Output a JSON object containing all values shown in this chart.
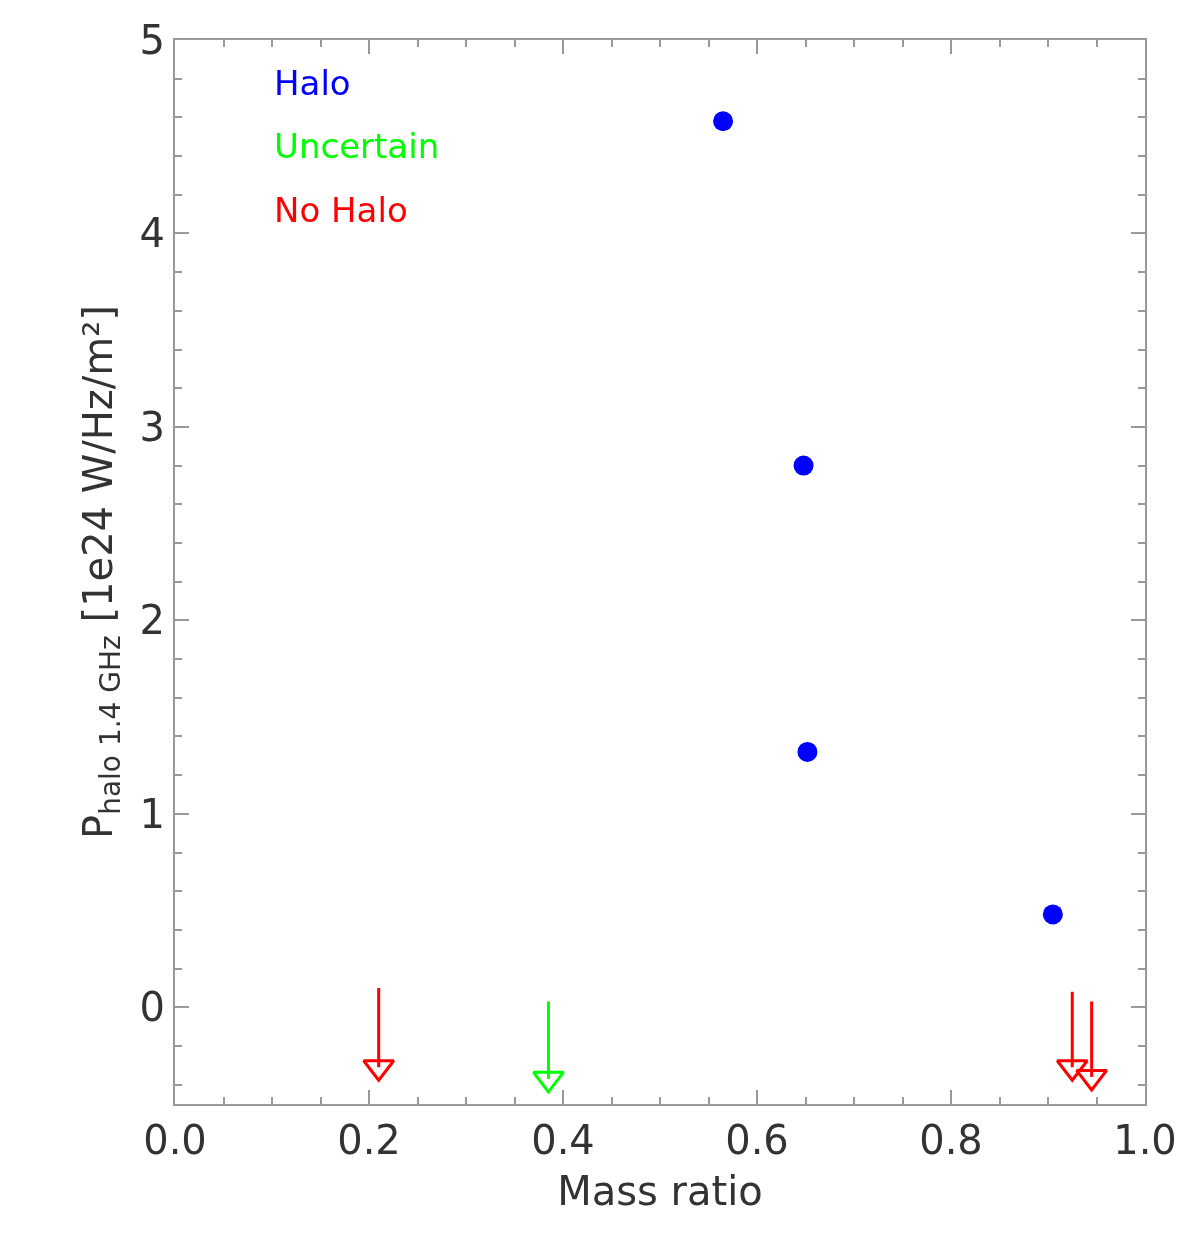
{
  "chart_data": {
    "type": "scatter",
    "xlabel": "Mass ratio",
    "ylabel": "P$_{halo 1.4 GHz}$ [1e24 W/Hz/m²]",
    "xlim": [
      0,
      1
    ],
    "xticks": [
      {
        "value": 0,
        "label": "0.0"
      },
      0.2,
      0.4,
      0.6,
      0.8,
      {
        "value": 1,
        "label": "1.0"
      }
    ],
    "ylim": [
      -0.5,
      5
    ],
    "yticks": [
      0,
      1,
      2,
      3,
      4,
      5
    ],
    "legend": false,
    "marker": "circle",
    "series": [
      {
        "name": "Halo",
        "color": "#0000ff",
        "x": [
          0.565,
          0.648,
          0.652,
          0.905
        ],
        "values": [
          4.58,
          2.8,
          1.32,
          0.48
        ]
      },
      {
        "name": "Uncertain",
        "color": "#00ff00",
        "marker": "triangle",
        "x": [
          0.385
        ],
        "values": [
          -0.37
        ],
        "errors": [
          [
            -0.37,
            0.03
          ]
        ]
      },
      {
        "name": "No Halo",
        "color": "#ff0000",
        "marker": "triangle",
        "x": [
          0.21,
          0.925,
          0.945
        ],
        "values": [
          -0.31,
          -0.31,
          -0.36
        ],
        "errors": [
          [
            -0.31,
            0.1
          ],
          [
            -0.31,
            0.08
          ],
          [
            -0.36,
            0.03
          ]
        ]
      }
    ]
  }
}
